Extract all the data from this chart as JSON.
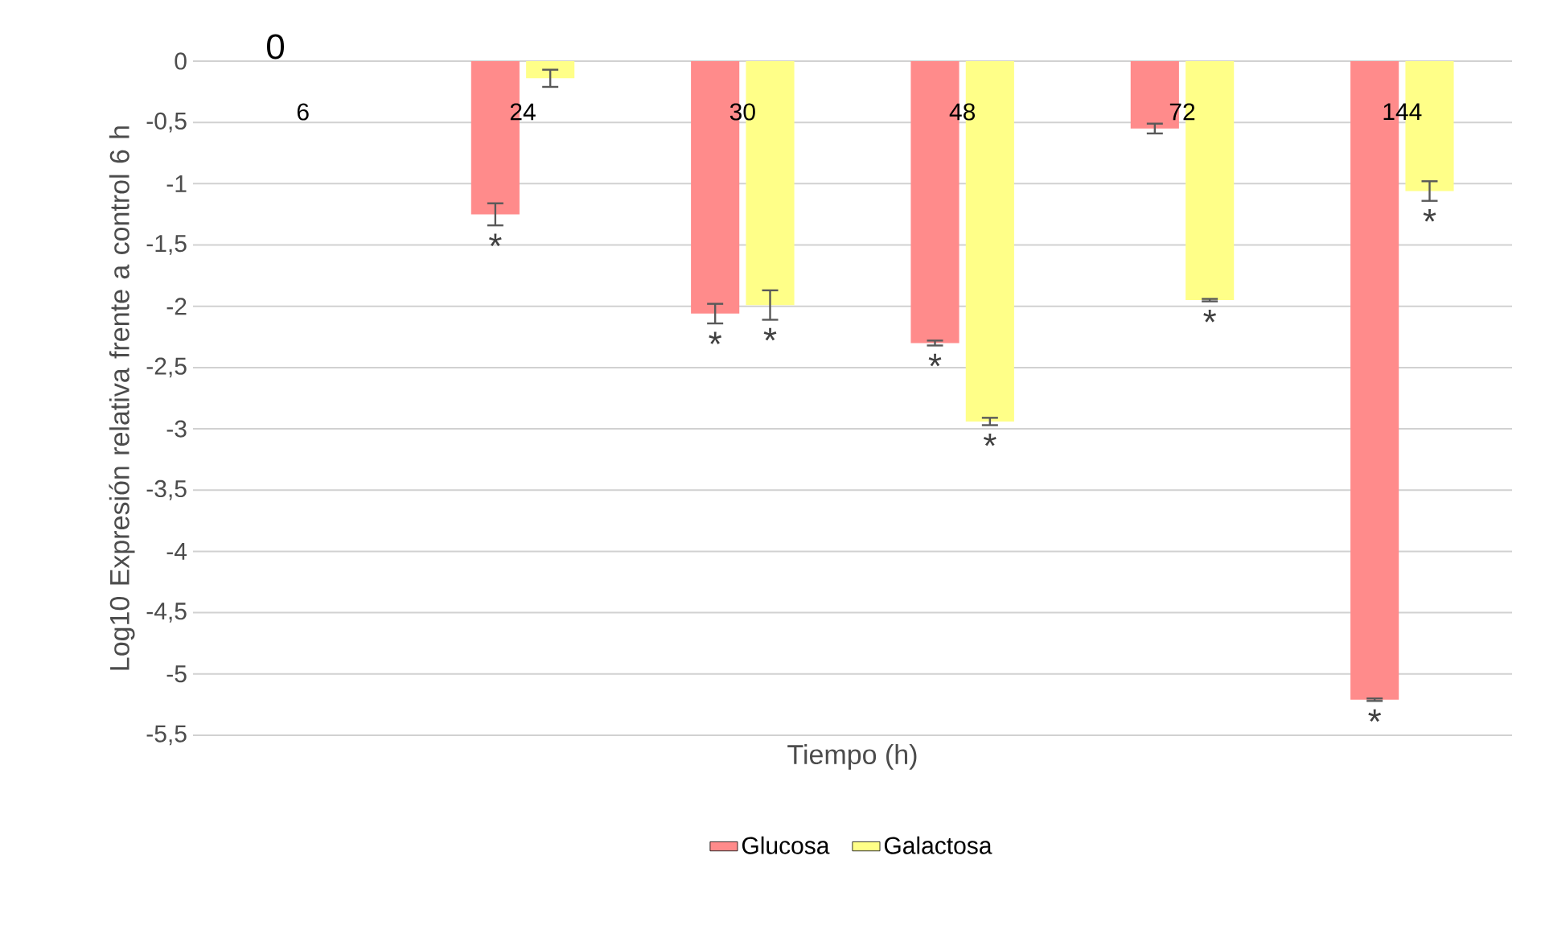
{
  "chart_data": {
    "type": "bar",
    "xlabel": "Tiempo (h)",
    "ylabel": "Log10 Expresión relativa frente a control 6 h",
    "categories": [
      "6",
      "24",
      "30",
      "48",
      "72",
      "144"
    ],
    "series": [
      {
        "name": "Glucosa",
        "color": "#ff8b8b",
        "values": [
          0,
          -1.25,
          -2.06,
          -2.3,
          -0.55,
          -5.21
        ],
        "errors": [
          null,
          0.09,
          0.08,
          0.02,
          0.04,
          0.01
        ],
        "value_labels": [
          "0",
          "*",
          "*",
          "*",
          null,
          "*"
        ]
      },
      {
        "name": "Galactosa",
        "color": "#ffff88",
        "values": [
          0,
          -0.14,
          -1.99,
          -2.94,
          -1.95,
          -1.06
        ],
        "errors": [
          null,
          0.07,
          0.12,
          0.03,
          0.01,
          0.08
        ],
        "value_labels": [
          null,
          null,
          "*",
          "*",
          "*",
          "*"
        ]
      }
    ],
    "ylim": [
      -5.5,
      0
    ],
    "yticks": [
      0,
      {
        "value": -0.5,
        "label": "-0,5"
      },
      -1,
      {
        "value": -1.5,
        "label": "-1,5"
      },
      -2,
      {
        "value": -2.5,
        "label": "-2,5"
      },
      -3,
      {
        "value": -3.5,
        "label": "-3,5"
      },
      -4,
      {
        "value": -4.5,
        "label": "-4,5"
      },
      -5,
      {
        "value": -5.5,
        "label": "-5,5"
      }
    ],
    "grid": "y",
    "legend": "bottom"
  }
}
